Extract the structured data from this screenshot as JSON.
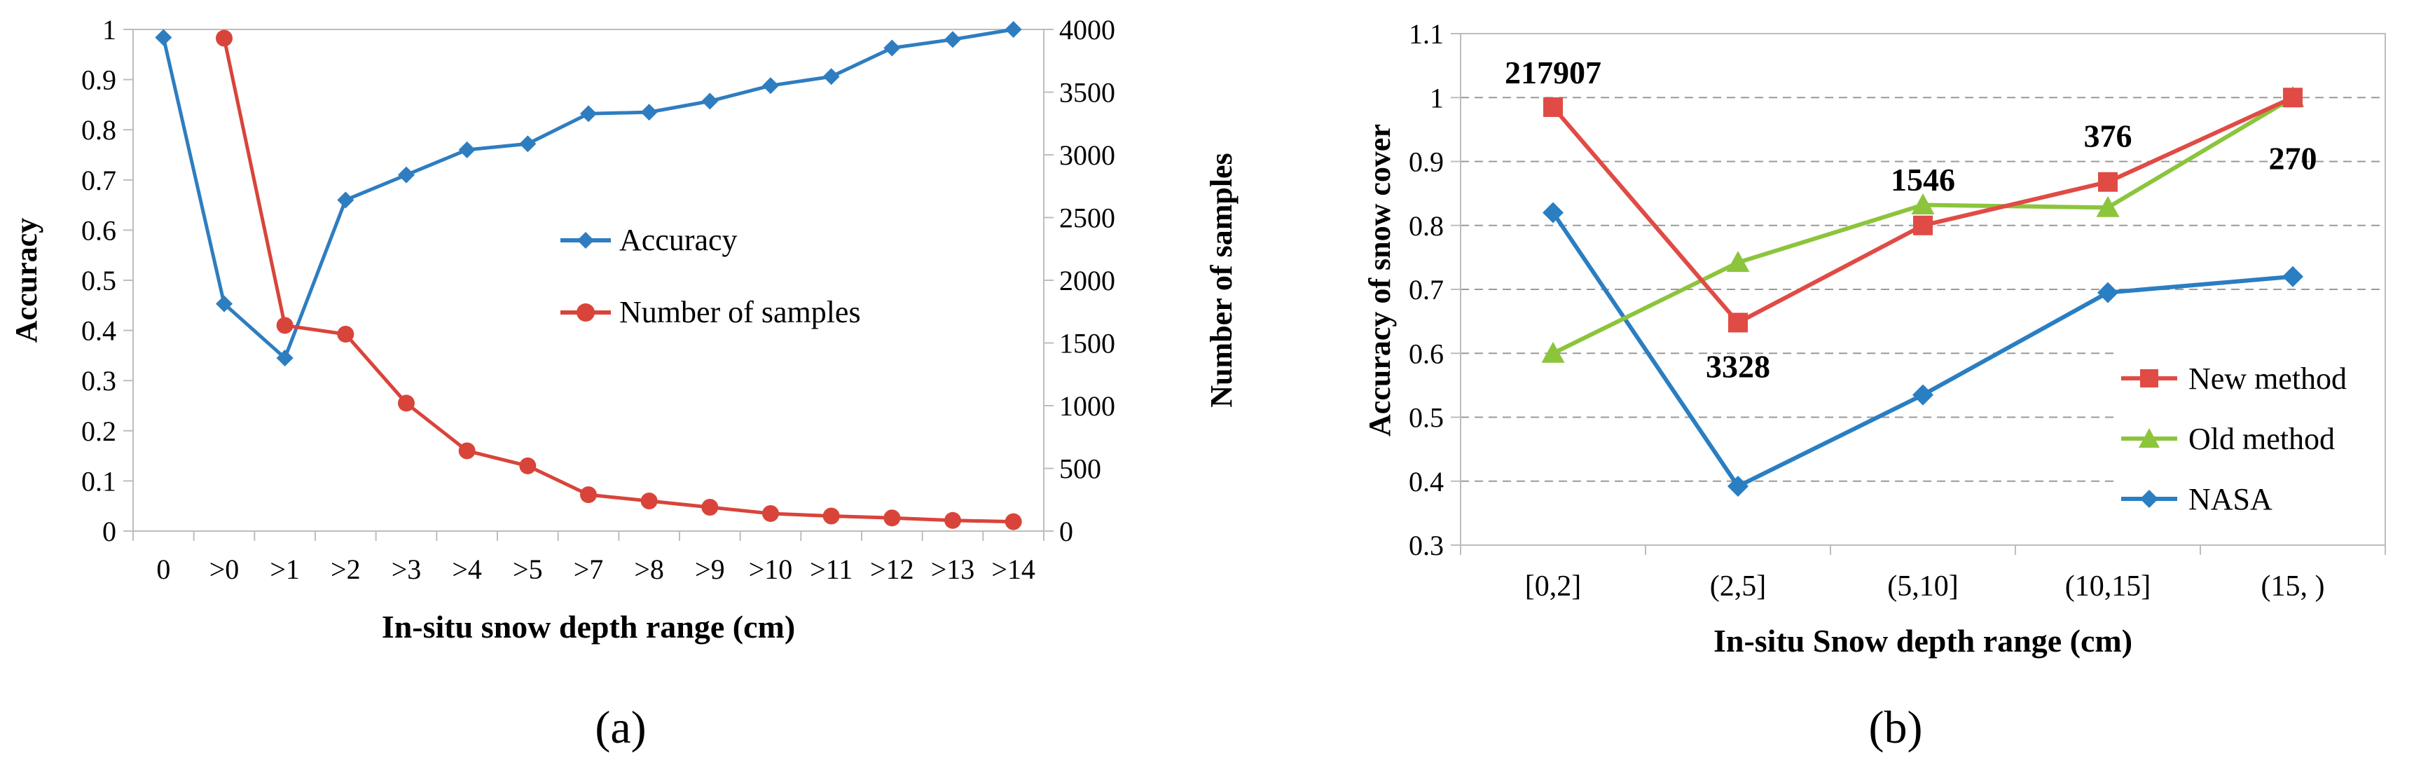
{
  "panel_a": {
    "caption": "(a)",
    "chart_data": {
      "type": "line",
      "categories": [
        "0",
        ">0",
        ">1",
        ">2",
        ">3",
        ">4",
        ">5",
        ">7",
        ">8",
        ">9",
        ">10",
        ">11",
        ">12",
        ">13",
        ">14"
      ],
      "xlabel": "In-situ snow depth range (cm)",
      "ylabel": "Accuracy",
      "y2label": "Number of samples",
      "ylim": [
        0,
        1
      ],
      "y2lim": [
        0,
        4000
      ],
      "yticks": [
        "0",
        "0.1",
        "0.2",
        "0.3",
        "0.4",
        "0.5",
        "0.6",
        "0.7",
        "0.8",
        "0.9",
        "1"
      ],
      "y2ticks": [
        "0",
        "500",
        "1000",
        "1500",
        "2000",
        "2500",
        "3000",
        "3500",
        "4000"
      ],
      "legend_position": "center-right",
      "series": [
        {
          "name": "Accuracy",
          "axis": "left",
          "color": "#2e7dc0",
          "marker": "diamond",
          "values": [
            0.984,
            0.453,
            0.345,
            0.66,
            0.71,
            0.76,
            0.772,
            0.832,
            0.835,
            0.857,
            0.888,
            0.906,
            0.963,
            0.98,
            1.0
          ]
        },
        {
          "name": "Number of samples",
          "axis": "right",
          "color": "#d9443a",
          "marker": "circle",
          "values": [
            null,
            3930,
            1640,
            1570,
            1020,
            640,
            520,
            290,
            240,
            190,
            140,
            120,
            105,
            85,
            75
          ]
        }
      ]
    }
  },
  "panel_b": {
    "caption": "(b)",
    "chart_data": {
      "type": "line",
      "categories": [
        "[0,2]",
        "(2,5]",
        "(5,10]",
        "(10,15]",
        "(15, )"
      ],
      "xlabel": "In-situ Snow depth range (cm)",
      "ylabel": "Accuracy of snow cover",
      "ylim": [
        0.3,
        1.1
      ],
      "yticks": [
        "0.3",
        "0.4",
        "0.5",
        "0.6",
        "0.7",
        "0.8",
        "0.9",
        "1",
        "1.1"
      ],
      "grid": true,
      "legend_position": "bottom-right",
      "series": [
        {
          "name": "New method",
          "color": "#e04b45",
          "marker": "square",
          "values": [
            0.985,
            0.648,
            0.8,
            0.868,
            1.0
          ]
        },
        {
          "name": "Old method",
          "color": "#8cc43c",
          "marker": "triangle",
          "values": [
            0.6,
            0.742,
            0.832,
            0.828,
            1.0
          ]
        },
        {
          "name": "NASA",
          "color": "#2a7ec2",
          "marker": "diamond",
          "values": [
            0.82,
            0.392,
            0.535,
            0.695,
            0.72
          ]
        }
      ],
      "annotations": [
        "217907",
        "3328",
        "1546",
        "376",
        "270"
      ]
    }
  }
}
